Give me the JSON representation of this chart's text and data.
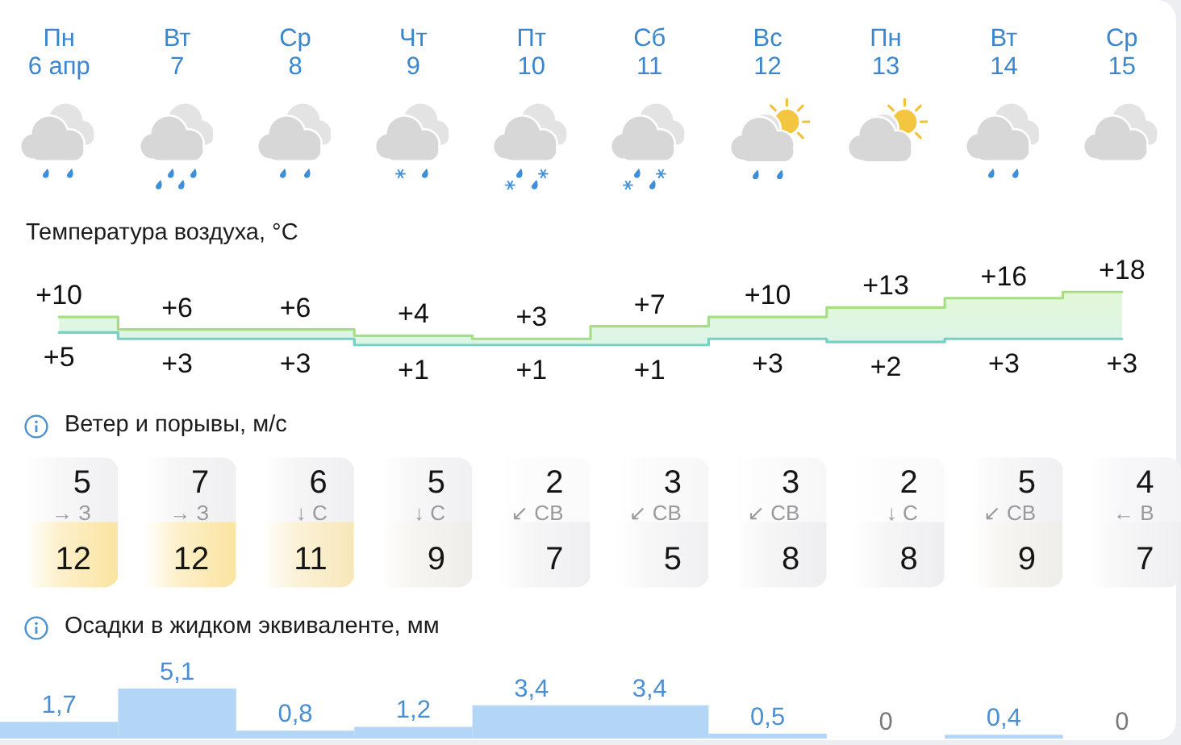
{
  "chart_data": [
    {
      "type": "step",
      "title": "Температура воздуха, °C",
      "categories": [
        "Пн\n6 апр",
        "Вт\n7",
        "Ср\n8",
        "Чт\n9",
        "Пт\n10",
        "Сб\n11",
        "Вс\n12",
        "Пн\n13",
        "Вт\n14",
        "Ср\n15"
      ],
      "series": [
        {
          "type": "area",
          "color": "#a6de86",
          "values": [
            10,
            6,
            6,
            4,
            3,
            7,
            10,
            13,
            16,
            18
          ],
          "value_labels": [
            "+10",
            "+6",
            "+6",
            "+4",
            "+3",
            "+7",
            "+10",
            "+13",
            "+16",
            "+18"
          ]
        },
        {
          "color": "#72d3c3",
          "values": [
            5,
            3,
            3,
            1,
            1,
            1,
            3,
            2,
            3,
            3
          ],
          "value_labels": [
            "+5",
            "+3",
            "+3",
            "+1",
            "+1",
            "+1",
            "+3",
            "+2",
            "+3",
            "+3"
          ]
        }
      ],
      "tick_labels": "x"
    },
    {
      "type": "heatmap",
      "title": "Ветер и порывы, м/с",
      "categories": [
        null,
        null,
        null,
        null,
        null,
        null,
        null,
        null,
        null,
        null
      ],
      "y_categories": [
        null,
        null
      ],
      "cells": [
        [
          5,
          7,
          6,
          5,
          2,
          3,
          3,
          2,
          5,
          4
        ],
        [
          12,
          12,
          11,
          9,
          7,
          5,
          8,
          8,
          9,
          7
        ]
      ],
      "cell_labels": [
        [
          "5\n→ З",
          "7\n→ З",
          "6\n↓ С",
          "5\n↓ С",
          "2\n↙ СВ",
          "3\n↙ СВ",
          "3\n↙ СВ",
          "2\n↓ С",
          "5\n↙ СВ",
          "4\n← В"
        ],
        [
          "12",
          "12",
          "11",
          "9",
          "7",
          "5",
          "8",
          "8",
          "9",
          "7"
        ]
      ],
      "tick_labels": false
    },
    {
      "type": "bar",
      "title": "Осадки в жидком эквиваленте, мм",
      "categories": [
        null,
        null,
        null,
        null,
        null,
        null,
        null,
        null,
        null,
        null
      ],
      "values": [
        1.7,
        5.1,
        0.8,
        1.2,
        3.4,
        3.4,
        0.5,
        0,
        0.4,
        0
      ],
      "value_labels": [
        "1,7",
        "5,1",
        "0,8",
        "1,2",
        "3,4",
        "3,4",
        "0,5",
        "0",
        "0,4",
        "0"
      ],
      "color": "#b3d6f6",
      "tick_labels": false
    }
  ]
}
